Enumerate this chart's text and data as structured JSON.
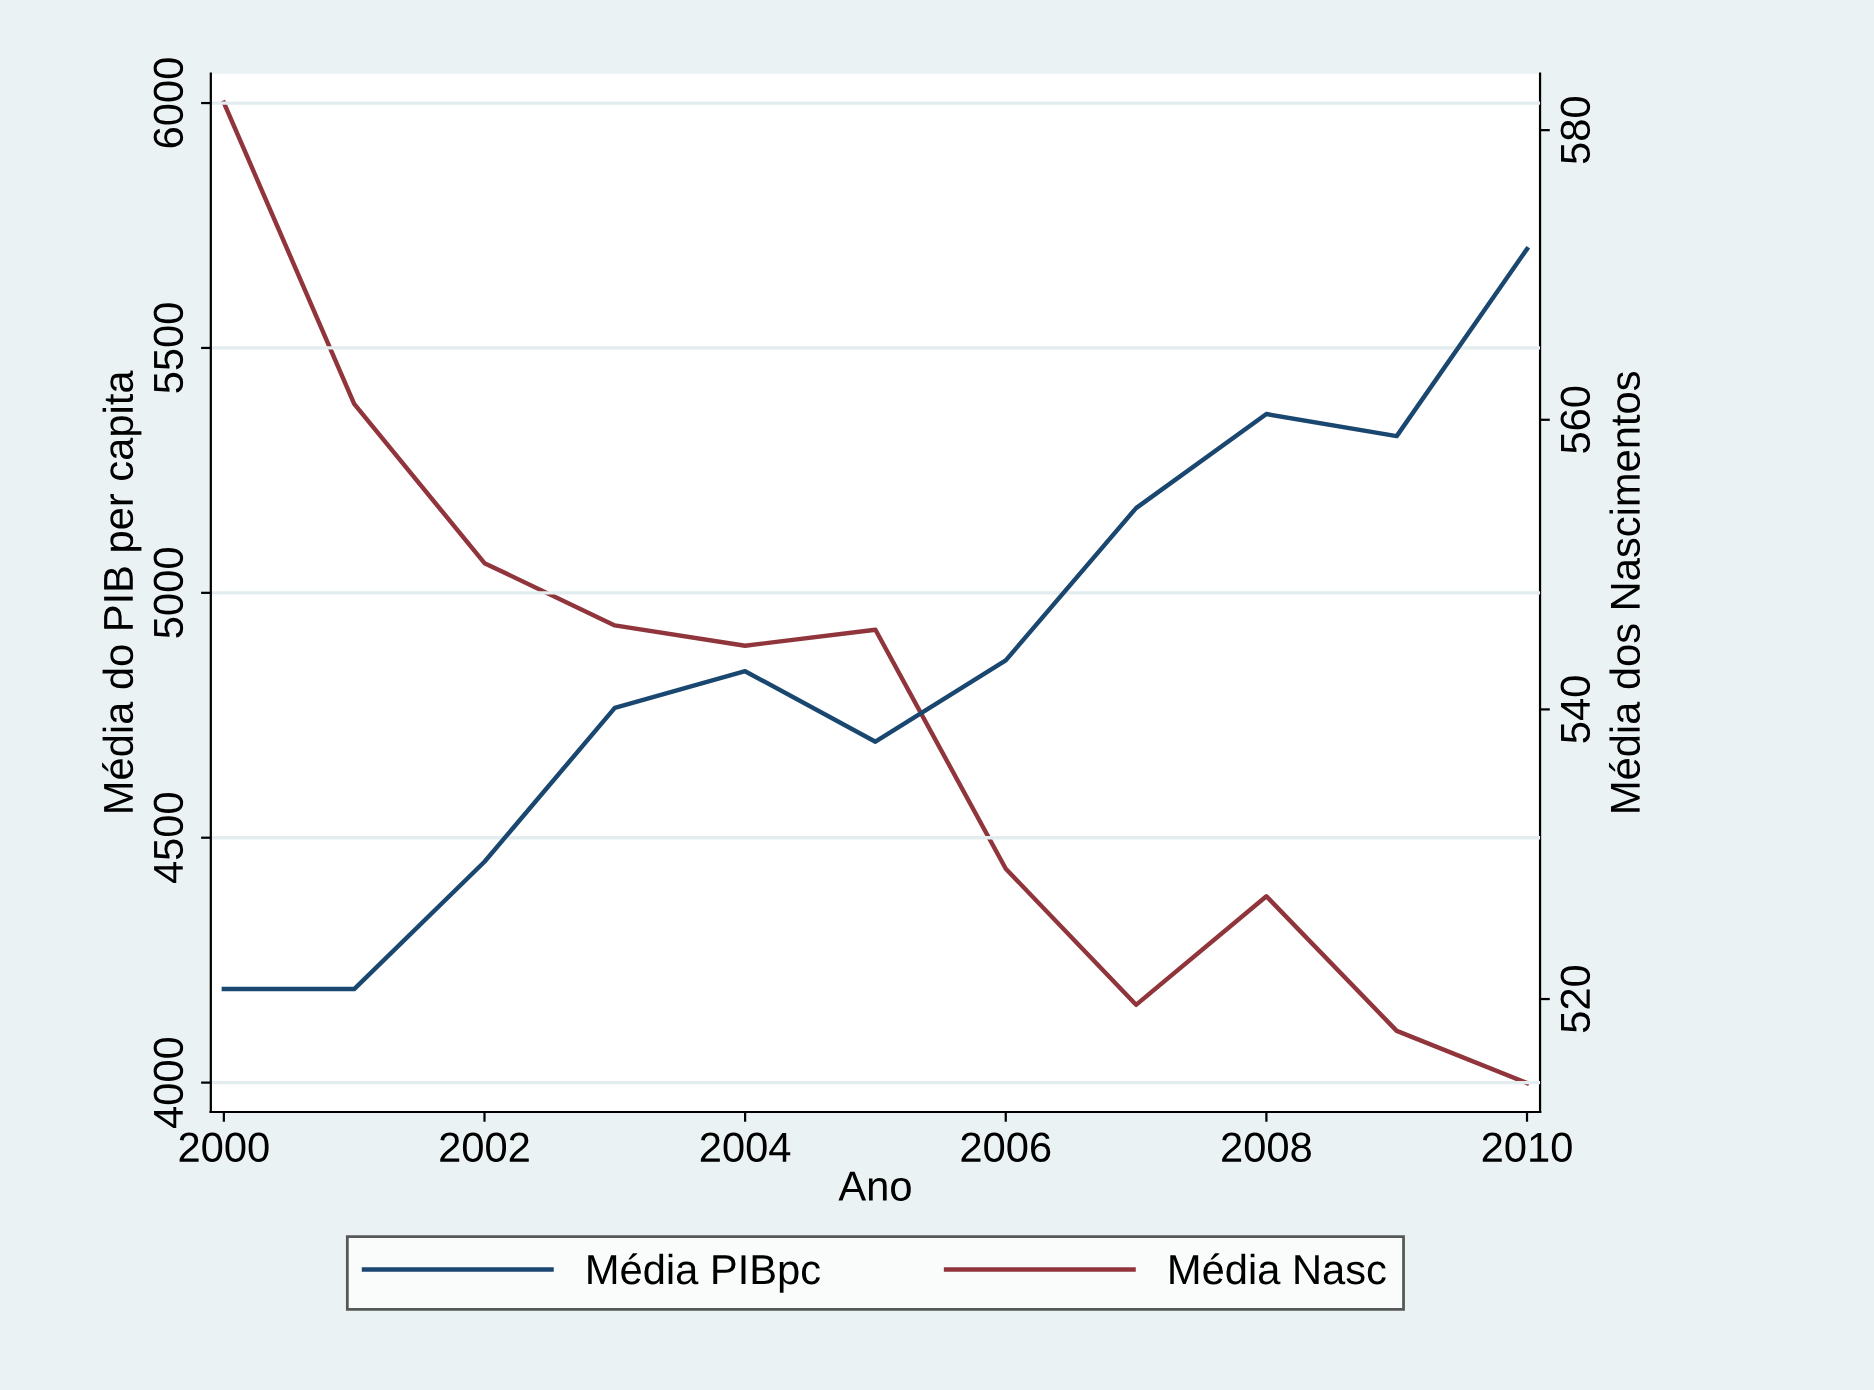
{
  "chart_data": {
    "type": "line",
    "xlabel": "Ano",
    "ylabel": "Média do PIB per capita",
    "y2label": "Média dos Nascimentos",
    "x": [
      2000,
      2001,
      2002,
      2003,
      2004,
      2005,
      2006,
      2007,
      2008,
      2009,
      2010
    ],
    "series": [
      {
        "name": "Média PIBpc",
        "color": "#1a476f",
        "values": [
          4191,
          4191,
          4451,
          4765,
          4840,
          4696,
          4862,
          5173,
          5365,
          5320,
          5702
        ]
      },
      {
        "name": "Média Nasc",
        "color": "#90353b",
        "axis": "y2",
        "values": [
          581.9,
          561.1,
          550.1,
          545.8,
          544.4,
          545.5,
          529.0,
          519.6,
          527.1,
          517.8,
          514.2
        ]
      }
    ],
    "xlim": [
      1999.9,
      2010.1
    ],
    "xticks": [
      2000,
      2002,
      2004,
      2006,
      2008,
      2010
    ],
    "ylim": [
      3940,
      6060
    ],
    "yticks": [
      4000,
      4500,
      5000,
      5500,
      6000
    ],
    "y2lim": [
      512.2,
      583.9
    ],
    "y2ticks": [
      520,
      540,
      560,
      580
    ],
    "grid": "y",
    "legend": "bottom",
    "marker": "none",
    "line_style": "solid"
  }
}
